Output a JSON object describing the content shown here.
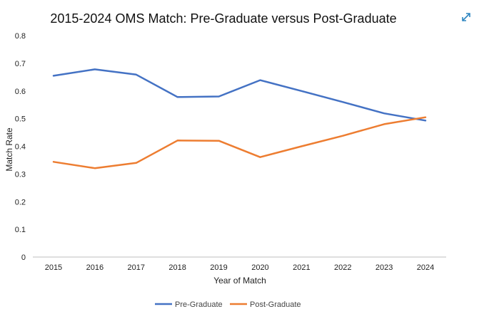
{
  "expand_icon": "expand-arrows-icon",
  "colors": {
    "pre_graduate": "#4472C4",
    "post_graduate": "#ED7D31",
    "expand_icon": "#2E86C1",
    "axis": "#BFBFBF"
  },
  "chart_data": {
    "type": "line",
    "title": "2015-2024 OMS Match: Pre-Graduate versus Post-Graduate",
    "xlabel": "Year of Match",
    "ylabel": "Match Rate",
    "ylim": [
      0,
      0.8
    ],
    "yticks": [
      "0",
      "0.1",
      "0.2",
      "0.3",
      "0.4",
      "0.5",
      "0.6",
      "0.7",
      "0.8"
    ],
    "grid": false,
    "legend_position": "bottom",
    "categories": [
      "2015",
      "2016",
      "2017",
      "2018",
      "2019",
      "2020",
      "2021",
      "2022",
      "2023",
      "2024"
    ],
    "series": [
      {
        "name": "Pre-Graduate",
        "values": [
          0.655,
          0.678,
          0.659,
          0.578,
          0.58,
          0.639,
          0.6,
          0.56,
          0.519,
          0.493
        ]
      },
      {
        "name": "Post-Graduate",
        "values": [
          0.344,
          0.321,
          0.34,
          0.421,
          0.42,
          0.361,
          0.4,
          0.438,
          0.48,
          0.505
        ]
      }
    ]
  }
}
